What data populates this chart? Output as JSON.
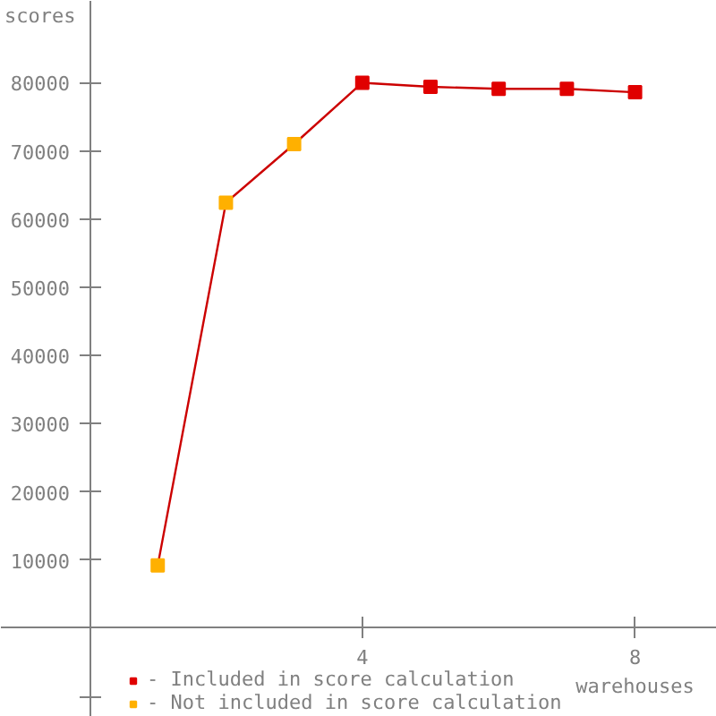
{
  "chart_data": {
    "type": "line",
    "xlabel": "warehouses",
    "ylabel": "scores",
    "x": [
      1,
      2,
      3,
      4,
      5,
      6,
      7,
      8
    ],
    "series": [
      {
        "marker": "none",
        "color": "#cc0000",
        "values": [
          9200,
          62400,
          71000,
          80000,
          79400,
          79100,
          79100,
          78600
        ]
      },
      {
        "type": "scatter",
        "name": "- Included in score calculation",
        "color": "#e00000",
        "values": [
          null,
          null,
          null,
          80000,
          79400,
          79100,
          79100,
          78600
        ]
      },
      {
        "type": "scatter",
        "name": "- Not included in score calculation",
        "color": "#ffb000",
        "values": [
          9200,
          62400,
          71000,
          null,
          null,
          null,
          null,
          null
        ]
      }
    ],
    "xlim": [
      -1.3,
      9.2
    ],
    "ylim": [
      -13000,
      92000
    ],
    "xticks": [
      4,
      8
    ],
    "yticks": [
      {
        "value": -10000,
        "label": null
      },
      10000,
      20000,
      30000,
      40000,
      50000,
      60000,
      70000,
      80000
    ],
    "marker": "square",
    "grid": false,
    "legend": "bottom left"
  }
}
